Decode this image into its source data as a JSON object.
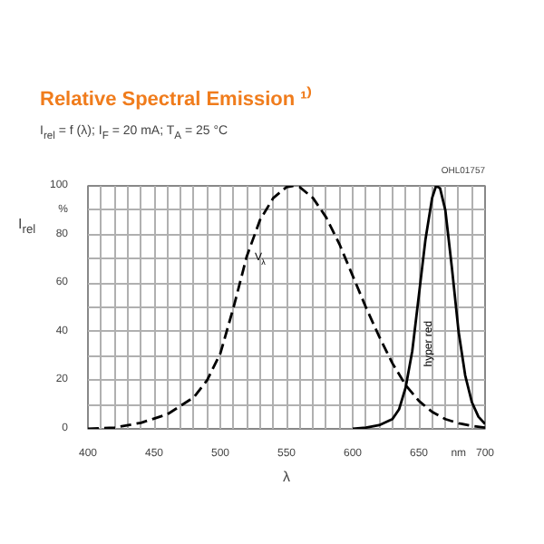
{
  "chart_data": {
    "type": "line",
    "title": "Relative Spectral Emission ¹⁾",
    "subtitle": "I$_{rel}$ = f (λ); I$_{F}$ = 20 mA; T$_{A}$ = 25 °C",
    "xlabel": "λ",
    "ylabel": "I$_{rel}$",
    "x": [
      400,
      420,
      440,
      460,
      480,
      490,
      500,
      510,
      520,
      530,
      540,
      550,
      555,
      560,
      570,
      580,
      590,
      600,
      610,
      620,
      630,
      640,
      650,
      660,
      670,
      680,
      690,
      700
    ],
    "series": [
      {
        "name": "V$_{λ}$",
        "color": "#000000",
        "line_style": "dashed",
        "values": [
          0,
          0.5,
          2.5,
          6,
          13,
          20,
          31,
          50,
          71,
          86,
          95,
          99.5,
          100,
          99.5,
          95,
          87,
          76,
          63,
          50,
          38,
          27,
          18,
          11.5,
          7,
          4,
          2.3,
          1.2,
          0.5
        ]
      },
      {
        "name": "hyper red",
        "color": "#000000",
        "line_style": "solid",
        "x": [
          600,
          610,
          620,
          630,
          635,
          640,
          645,
          650,
          655,
          660,
          663,
          666,
          670,
          675,
          680,
          685,
          690,
          695,
          700
        ],
        "values": [
          0,
          0.5,
          1.5,
          4,
          8,
          17,
          32,
          55,
          78,
          95,
          100,
          99,
          90,
          66,
          40,
          22,
          11,
          5,
          2
        ]
      }
    ],
    "xlim": [
      400,
      700
    ],
    "ylim": [
      0,
      100
    ],
    "xticks": [
      400,
      {
        "value": 410,
        "label": null
      },
      {
        "value": 420,
        "label": null
      },
      {
        "value": 430,
        "label": null
      },
      {
        "value": 440,
        "label": null
      },
      450,
      {
        "value": 460,
        "label": null
      },
      {
        "value": 470,
        "label": null
      },
      {
        "value": 480,
        "label": null
      },
      {
        "value": 490,
        "label": null
      },
      500,
      {
        "value": 510,
        "label": null
      },
      {
        "value": 520,
        "label": null
      },
      {
        "value": 530,
        "label": null
      },
      {
        "value": 540,
        "label": null
      },
      550,
      {
        "value": 560,
        "label": null
      },
      {
        "value": 570,
        "label": null
      },
      {
        "value": 580,
        "label": null
      },
      {
        "value": 590,
        "label": null
      },
      600,
      {
        "value": 610,
        "label": null
      },
      {
        "value": 620,
        "label": null
      },
      {
        "value": 630,
        "label": null
      },
      {
        "value": 640,
        "label": null
      },
      650,
      {
        "value": 660,
        "label": null
      },
      {
        "value": 670,
        "label": null
      },
      {
        "value": 680,
        "label": "nm"
      },
      {
        "value": 690,
        "label": null
      },
      700
    ],
    "yticks": [
      0,
      {
        "value": 10,
        "label": null
      },
      20,
      {
        "value": 30,
        "label": null
      },
      40,
      {
        "value": 50,
        "label": null
      },
      60,
      {
        "value": 70,
        "label": null
      },
      80,
      {
        "value": 90,
        "label": "%"
      },
      100
    ],
    "annotations": [
      "OHL01757"
    ],
    "grid": true
  }
}
